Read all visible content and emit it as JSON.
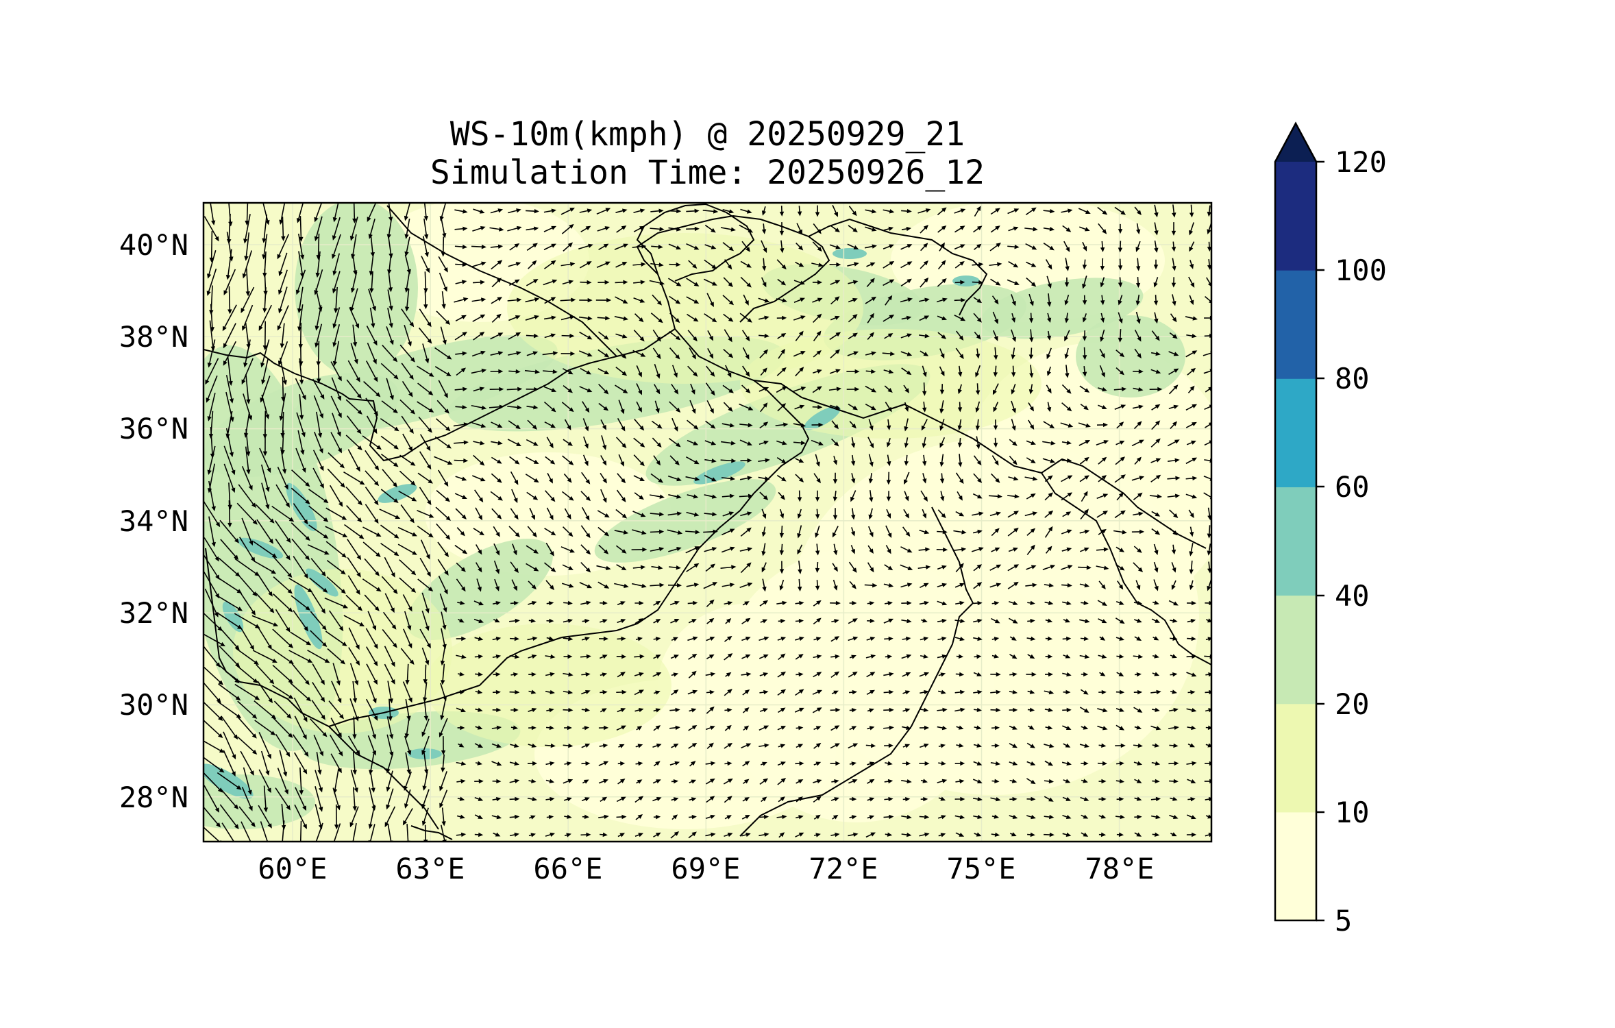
{
  "title_line1": "WS-10m(kmph) @ 20250929_21",
  "title_line2": "Simulation Time: 20250926_12",
  "map": {
    "lon_range": [
      58.0,
      80.0
    ],
    "lat_range": [
      27.0,
      41.0
    ],
    "lon_ticks": [
      "60°E",
      "63°E",
      "66°E",
      "69°E",
      "72°E",
      "75°E",
      "78°E"
    ],
    "lat_ticks": [
      "40°N",
      "38°N",
      "36°N",
      "34°N",
      "32°N",
      "30°N",
      "28°N"
    ],
    "field": "10 m wind speed (filled contours) with wind vectors",
    "dominant_fill": "5-10"
  },
  "colorbar": {
    "labels": [
      "120",
      "100",
      "80",
      "60",
      "40",
      "20",
      "10",
      "5"
    ],
    "levels": [
      5,
      10,
      20,
      40,
      60,
      80,
      100,
      120
    ],
    "colors": [
      "#ffffd9",
      "#edf8b1",
      "#c7e9b4",
      "#7fcdbb",
      "#2ea8c6",
      "#2262a8",
      "#1c2c7f"
    ],
    "extend_color": "#0c1f53",
    "extend": "max"
  }
}
